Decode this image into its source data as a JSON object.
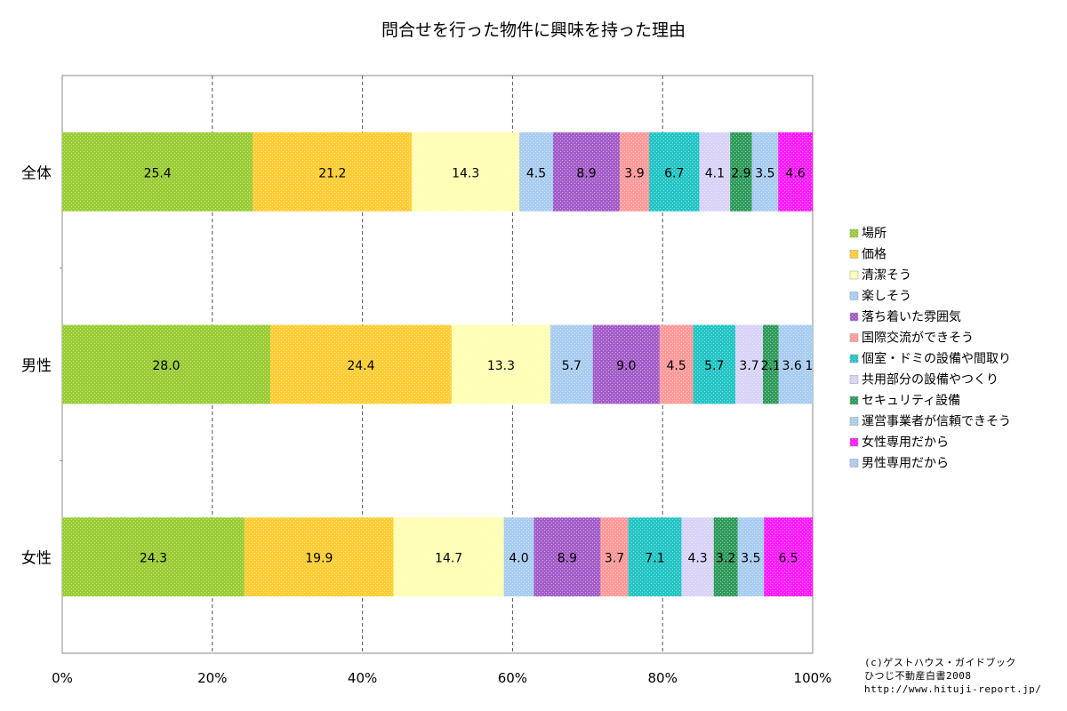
{
  "chart_data": {
    "type": "bar",
    "orientation": "horizontal",
    "stacked": "percent",
    "title": "問合せを行った物件に興味を持った理由",
    "xlabel": "",
    "ylabel": "",
    "xlim": [
      0,
      100
    ],
    "x_tick_labels": [
      "0%",
      "20%",
      "40%",
      "60%",
      "80%",
      "100%"
    ],
    "grid": "vertical dashed",
    "legend_position": "right",
    "categories": [
      "全体",
      "男性",
      "女性"
    ],
    "series": [
      {
        "name": "場所",
        "values": [
          25.4,
          28.0,
          24.3
        ],
        "labels": [
          "25.4",
          "28.0",
          "24.3"
        ],
        "color": "#99cc33"
      },
      {
        "name": "価格",
        "values": [
          21.2,
          24.4,
          19.9
        ],
        "labels": [
          "21.2",
          "24.4",
          "19.9"
        ],
        "color": "#ffcc33"
      },
      {
        "name": "清潔そう",
        "values": [
          14.3,
          13.3,
          14.7
        ],
        "labels": [
          "14.3",
          "13.3",
          "14.7"
        ],
        "color": "#ffffb3"
      },
      {
        "name": "楽しそう",
        "values": [
          4.5,
          5.7,
          4.0
        ],
        "labels": [
          "4.5",
          "5.7",
          "4.0"
        ],
        "color": "#a8ccf0"
      },
      {
        "name": "落ち着いた雰囲気",
        "values": [
          8.9,
          9.0,
          8.9
        ],
        "labels": [
          "8.9",
          "9.0",
          "8.9"
        ],
        "color": "#a35cc8"
      },
      {
        "name": "国際交流ができそう",
        "values": [
          3.9,
          4.5,
          3.7
        ],
        "labels": [
          "3.9",
          "4.5",
          "3.7"
        ],
        "color": "#ff9999"
      },
      {
        "name": "個室・ドミの設備や間取り",
        "values": [
          6.7,
          5.7,
          7.1
        ],
        "labels": [
          "6.7",
          "5.7",
          "7.1"
        ],
        "color": "#22c4c4"
      },
      {
        "name": "共用部分の設備やつくり",
        "values": [
          4.1,
          3.7,
          4.3
        ],
        "labels": [
          "4.1",
          "3.7",
          "4.3"
        ],
        "color": "#d8d2f8"
      },
      {
        "name": "セキュリティ設備",
        "values": [
          2.9,
          2.1,
          3.2
        ],
        "labels": [
          "2.9",
          "2.1",
          "3.2"
        ],
        "color": "#2e9a5a"
      },
      {
        "name": "運営事業者が信頼できそう",
        "values": [
          3.5,
          3.6,
          3.5
        ],
        "labels": [
          "3.5",
          "3.6",
          "3.5"
        ],
        "color": "#a8ccf0"
      },
      {
        "name": "女性専用だから",
        "values": [
          4.6,
          0,
          6.5
        ],
        "labels": [
          "4.6",
          "",
          "6.5"
        ],
        "color": "#ff1aff"
      },
      {
        "name": "男性専用だから",
        "values": [
          0,
          1,
          0
        ],
        "labels": [
          "",
          "1",
          ""
        ],
        "color": "#a8ccf0"
      }
    ]
  },
  "credit": {
    "line1": "(c)ゲストハウス・ガイドブック",
    "line2": "ひつじ不動産白書2008",
    "line3": "http://www.hituji-report.jp/"
  }
}
